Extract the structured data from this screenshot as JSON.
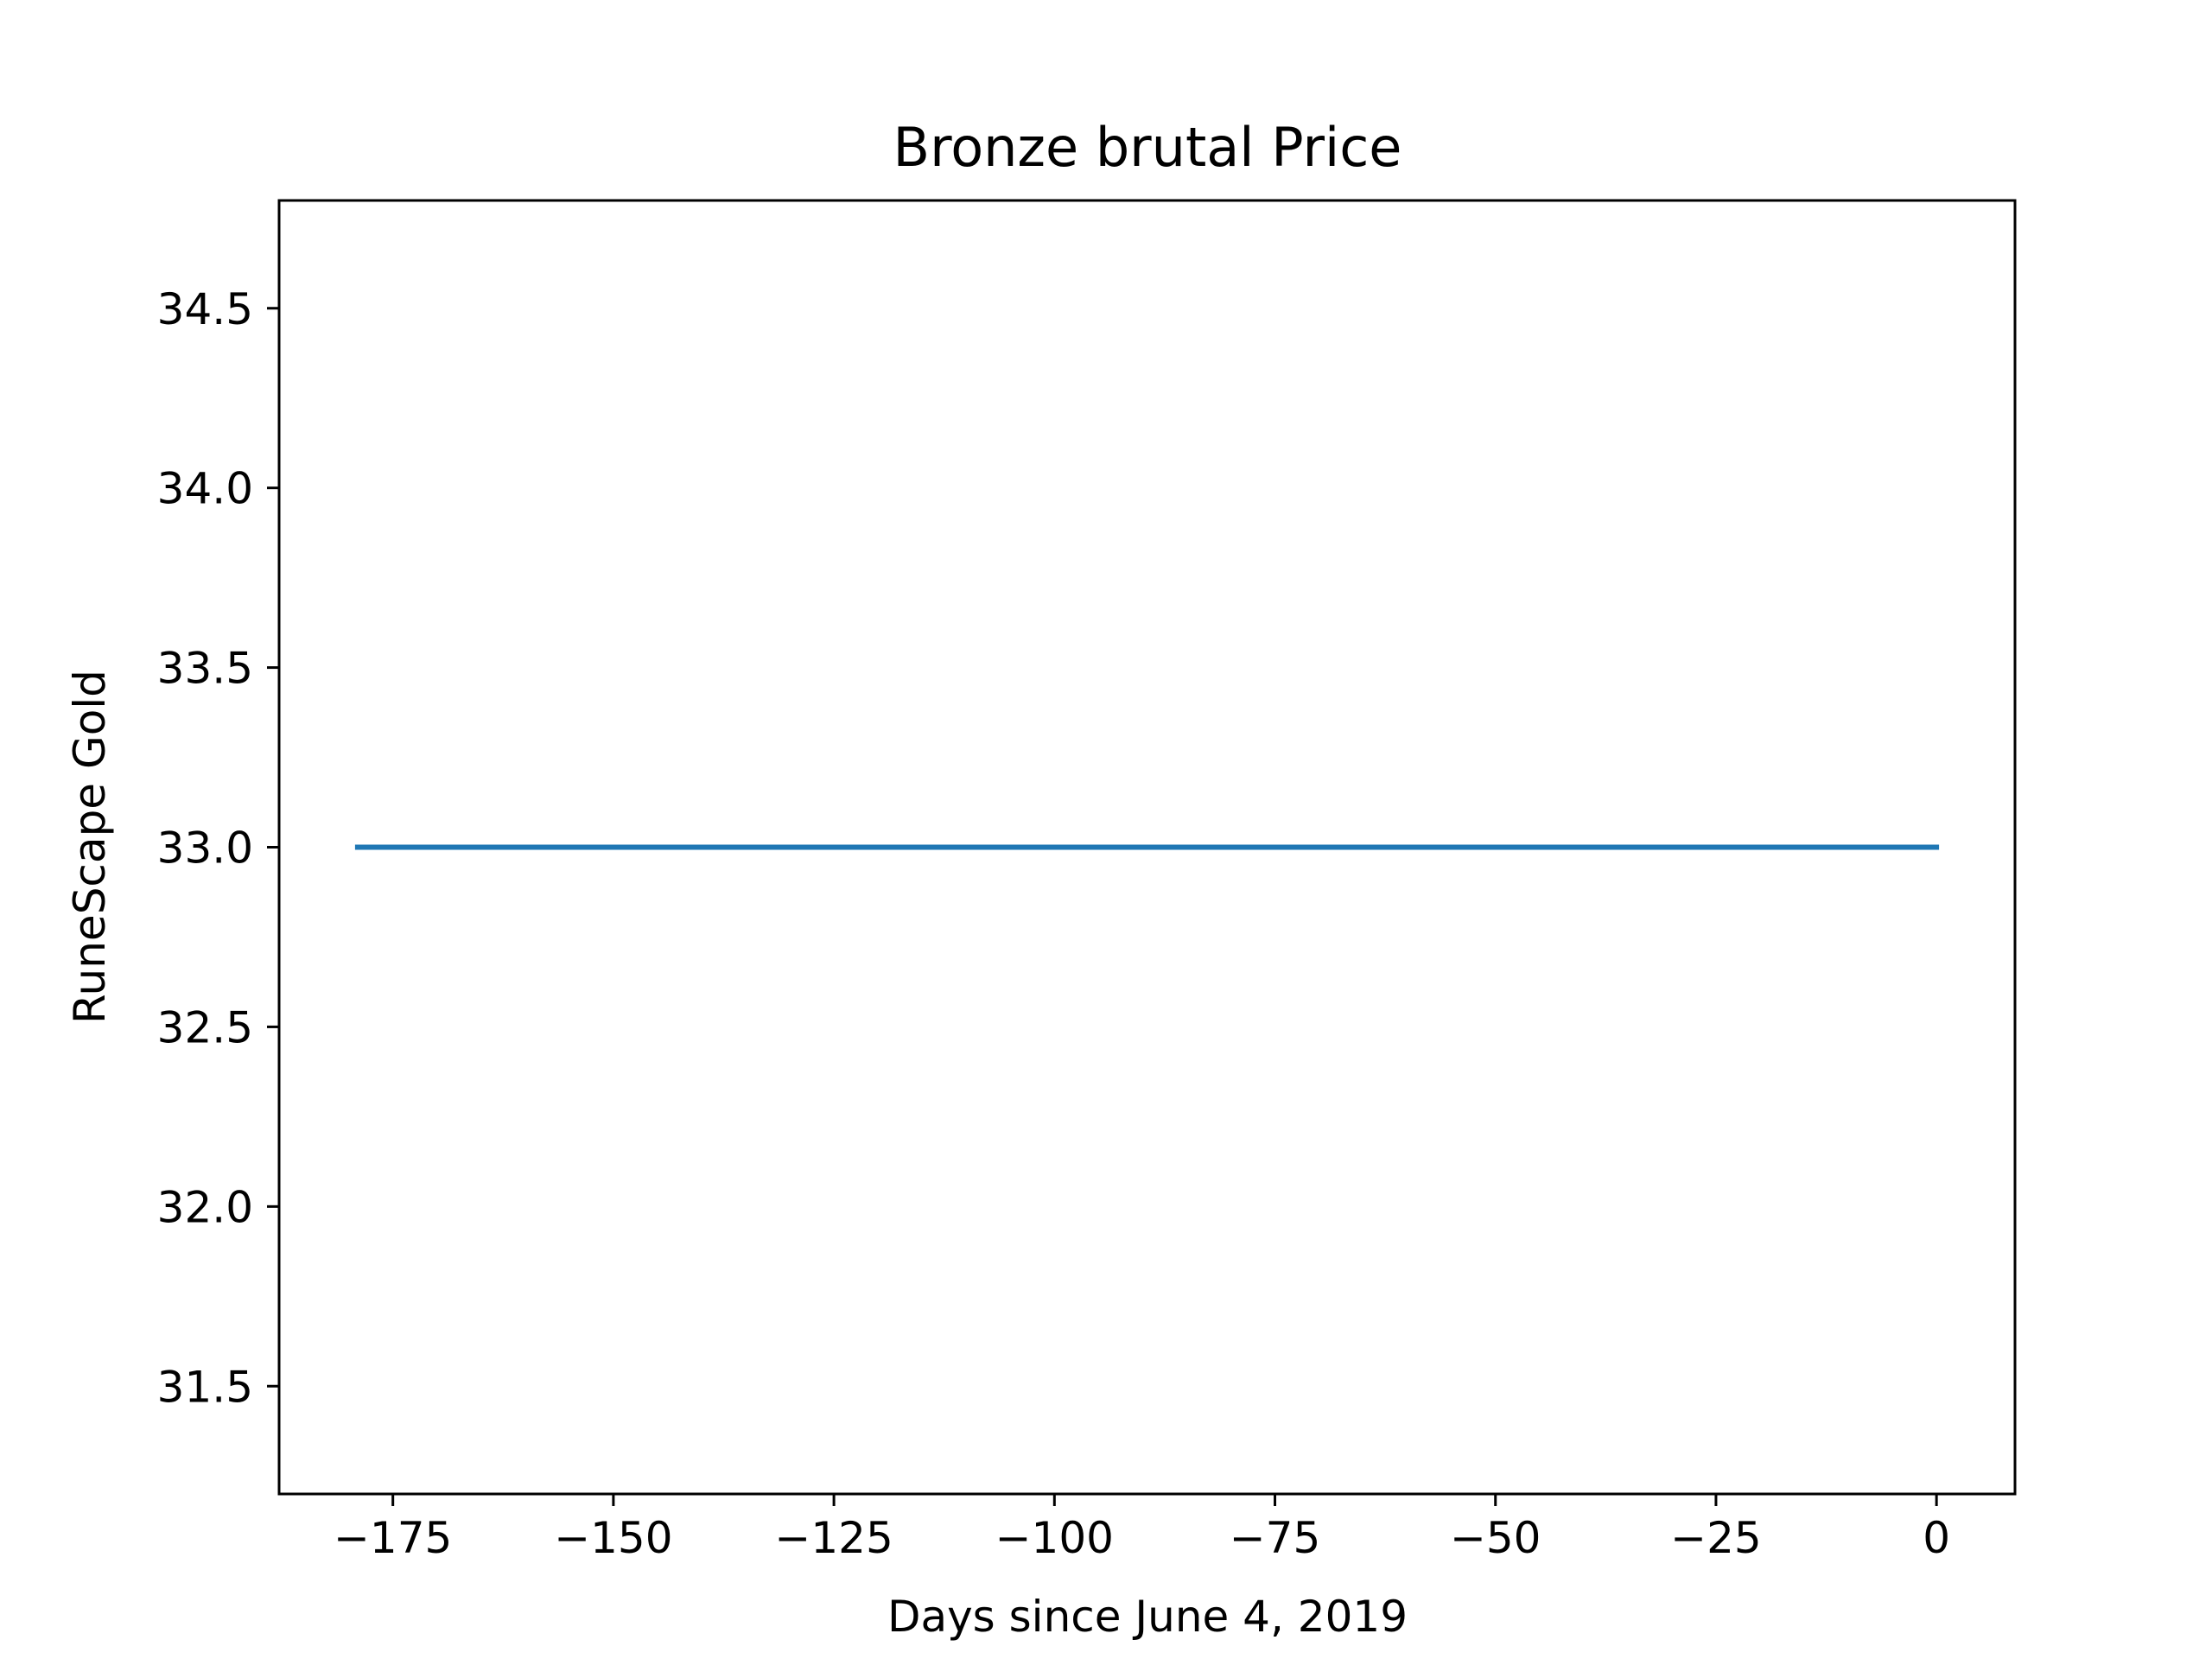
{
  "chart_data": {
    "type": "line",
    "title": "Bronze brutal Price",
    "xlabel": "Days since June 4, 2019",
    "ylabel": "RuneScape Gold",
    "xlim": [
      -187.9,
      8.9
    ],
    "ylim": [
      31.2,
      34.8
    ],
    "xticks": [
      -175,
      -150,
      -125,
      -100,
      -75,
      -50,
      -25,
      0
    ],
    "xtick_labels": [
      "−175",
      "−150",
      "−125",
      "−100",
      "−75",
      "−50",
      "−25",
      "0"
    ],
    "yticks": [
      31.5,
      32.0,
      32.5,
      33.0,
      33.5,
      34.0,
      34.5
    ],
    "ytick_labels": [
      "31.5",
      "32.0",
      "32.5",
      "33.0",
      "33.5",
      "34.0",
      "34.5"
    ],
    "grid": false,
    "series": [
      {
        "color": "#1f77b4",
        "x": [
          -179,
          0
        ],
        "y": [
          33.0,
          33.0
        ]
      }
    ]
  }
}
